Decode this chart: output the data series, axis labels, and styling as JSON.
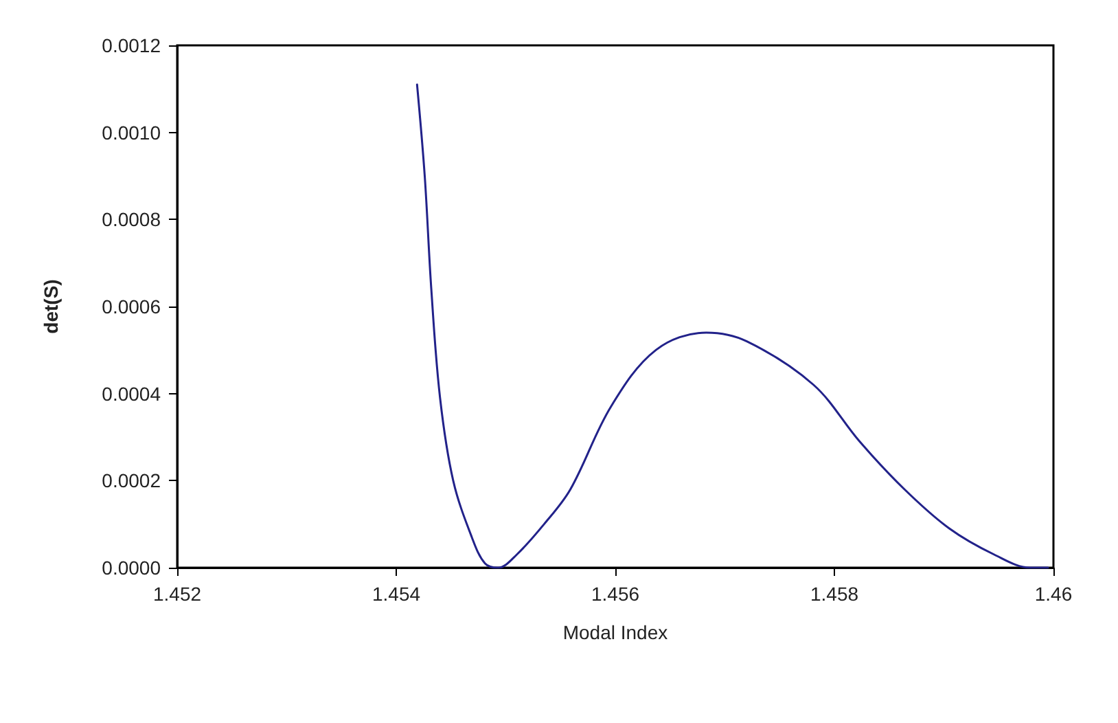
{
  "chart_data": {
    "type": "line",
    "xlabel": "Modal Index",
    "ylabel": "det(S)",
    "x": [
      1.45419,
      1.45426,
      1.45432,
      1.4544,
      1.45452,
      1.45469,
      1.45481,
      1.45493,
      1.4551,
      1.45535,
      1.45559,
      1.45596,
      1.45637,
      1.45683,
      1.4572,
      1.45781,
      1.45823,
      1.45864,
      1.45905,
      1.45946,
      1.45979,
      1.45995
    ],
    "series": [
      {
        "color": "#22228a",
        "values": [
          0.00111,
          0.0009,
          0.00064,
          0.00039,
          0.0002,
          7e-05,
          1e-05,
          0,
          3e-05,
          0.0001,
          0.00018,
          0.00037,
          0.0005,
          0.00054,
          0.00052,
          0.00042,
          0.00029,
          0.00018,
          9e-05,
          3e-05,
          0,
          0
        ]
      }
    ],
    "xlim": [
      1.452,
      1.46
    ],
    "xticks": [
      1.452,
      1.454,
      1.456,
      1.458,
      1.46
    ],
    "ylim": [
      0,
      0.0012
    ],
    "yticks": [
      {
        "value": 0,
        "label": "0.0000"
      },
      {
        "value": 0.0002,
        "label": "0.0002"
      },
      {
        "value": 0.0004,
        "label": "0.0004"
      },
      {
        "value": 0.0006,
        "label": "0.0006"
      },
      {
        "value": 0.0008,
        "label": "0.0008"
      },
      {
        "value": 0.001,
        "label": "0.0010"
      },
      {
        "value": 0.0012,
        "label": "0.0012"
      }
    ],
    "grid": false,
    "marker": "none",
    "line_style": "solid"
  }
}
